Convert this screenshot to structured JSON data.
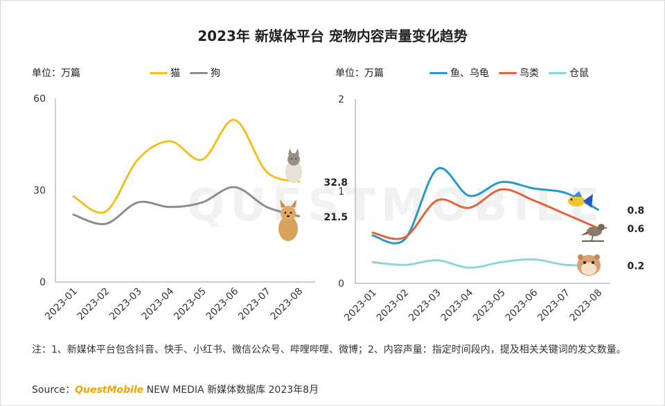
{
  "title": "2023年 新媒体平台 宠物内容声量变化趋势",
  "watermark": "QUESTMOBILE",
  "chart_data": [
    {
      "type": "line",
      "unit_label": "单位：万篇",
      "categories": [
        "2023-01",
        "2023-02",
        "2023-03",
        "2023-04",
        "2023-05",
        "2023-06",
        "2023-07",
        "2023-08"
      ],
      "ylim": [
        0,
        60
      ],
      "yticks": [
        "0",
        "30",
        "60"
      ],
      "series": [
        {
          "name": "猫",
          "color": "#f5be1e",
          "values": [
            28,
            23,
            40,
            46,
            40,
            53,
            36,
            32.8
          ],
          "end_label": "32.8"
        },
        {
          "name": "狗",
          "color": "#8c8c8c",
          "values": [
            22,
            19,
            26,
            24.5,
            26,
            31,
            24.5,
            21.5
          ],
          "end_label": "21.5"
        }
      ]
    },
    {
      "type": "line",
      "unit_label": "单位：万篇",
      "categories": [
        "2023-01",
        "2023-02",
        "2023-03",
        "2023-04",
        "2023-05",
        "2023-06",
        "2023-07",
        "2023-08"
      ],
      "ylim": [
        0,
        2
      ],
      "yticks": [
        "0",
        "1",
        "2"
      ],
      "series": [
        {
          "name": "鱼、乌龟",
          "color": "#2a97c9",
          "values": [
            0.52,
            0.48,
            1.24,
            0.95,
            1.1,
            1.03,
            0.98,
            0.8
          ],
          "end_label": "0.8"
        },
        {
          "name": "鸟类",
          "color": "#e4623b",
          "values": [
            0.55,
            0.5,
            0.9,
            0.82,
            1.02,
            0.9,
            0.75,
            0.6
          ],
          "end_label": "0.6"
        },
        {
          "name": "仓鼠",
          "color": "#8fd4d8",
          "values": [
            0.23,
            0.2,
            0.25,
            0.17,
            0.23,
            0.26,
            0.2,
            0.2
          ],
          "end_label": "0.2"
        }
      ]
    }
  ],
  "note": "注：1、新媒体平台包含抖音、快手、小红书、微信公众号、哔哩哔哩、微博；2、内容声量：指定时间段内，提及相关关键词的发文数量。",
  "source": {
    "prefix": "Source：",
    "brand": "QuestMobile",
    "suffix": " NEW MEDIA 新媒体数据库 2023年8月"
  }
}
